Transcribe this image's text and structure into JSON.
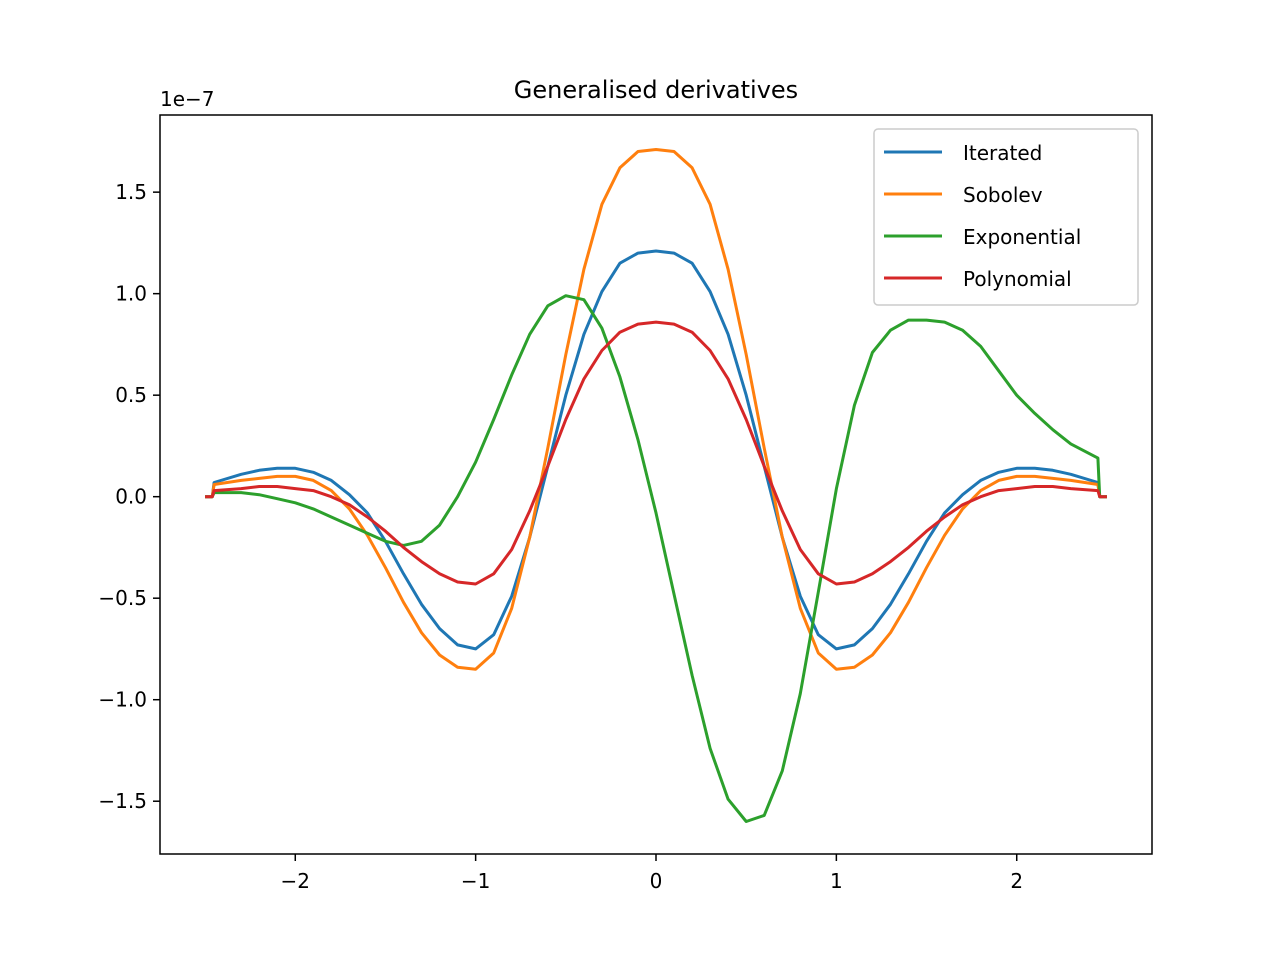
{
  "chart_data": {
    "type": "line",
    "title": "Generalised derivatives",
    "xlabel": "",
    "ylabel": "",
    "y_offset_label": "1e−7",
    "xlim": [
      -2.75,
      2.75
    ],
    "ylim": [
      -1.76,
      1.88
    ],
    "y_scale": 1e-07,
    "grid": false,
    "legend_position": "top-right",
    "xticks": [
      -2,
      -1,
      0,
      1,
      2
    ],
    "xtick_labels": [
      "−2",
      "−1",
      "0",
      "1",
      "2"
    ],
    "yticks": [
      -1.5,
      -1.0,
      -0.5,
      0.0,
      0.5,
      1.0,
      1.5
    ],
    "ytick_labels": [
      "−1.5",
      "−1.0",
      "−0.5",
      "0.0",
      "0.5",
      "1.0",
      "1.5"
    ],
    "x": [
      -2.45,
      -2.3,
      -2.2,
      -2.1,
      -2.0,
      -1.9,
      -1.8,
      -1.7,
      -1.6,
      -1.5,
      -1.4,
      -1.3,
      -1.2,
      -1.1,
      -1.0,
      -0.9,
      -0.8,
      -0.7,
      -0.6,
      -0.5,
      -0.4,
      -0.3,
      -0.2,
      -0.1,
      0.0,
      0.1,
      0.2,
      0.3,
      0.4,
      0.5,
      0.6,
      0.7,
      0.8,
      0.9,
      1.0,
      1.1,
      1.2,
      1.3,
      1.4,
      1.5,
      1.6,
      1.7,
      1.8,
      1.9,
      2.0,
      2.1,
      2.2,
      2.3,
      2.45
    ],
    "series": [
      {
        "name": "Iterated",
        "color": "#1f77b4",
        "values": [
          0.07,
          0.11,
          0.13,
          0.14,
          0.14,
          0.12,
          0.08,
          0.01,
          -0.08,
          -0.22,
          -0.38,
          -0.53,
          -0.65,
          -0.73,
          -0.75,
          -0.68,
          -0.49,
          -0.2,
          0.15,
          0.5,
          0.8,
          1.01,
          1.15,
          1.2,
          1.21,
          1.2,
          1.15,
          1.01,
          0.8,
          0.5,
          0.15,
          -0.2,
          -0.49,
          -0.68,
          -0.75,
          -0.73,
          -0.65,
          -0.53,
          -0.38,
          -0.22,
          -0.08,
          0.01,
          0.08,
          0.12,
          0.14,
          0.14,
          0.13,
          0.11,
          0.07
        ]
      },
      {
        "name": "Sobolev",
        "color": "#ff7f0e",
        "values": [
          0.06,
          0.08,
          0.09,
          0.1,
          0.1,
          0.08,
          0.03,
          -0.06,
          -0.19,
          -0.35,
          -0.52,
          -0.67,
          -0.78,
          -0.84,
          -0.85,
          -0.77,
          -0.55,
          -0.2,
          0.24,
          0.7,
          1.12,
          1.44,
          1.62,
          1.7,
          1.71,
          1.7,
          1.62,
          1.44,
          1.12,
          0.7,
          0.24,
          -0.2,
          -0.55,
          -0.77,
          -0.85,
          -0.84,
          -0.78,
          -0.67,
          -0.52,
          -0.35,
          -0.19,
          -0.06,
          0.03,
          0.08,
          0.1,
          0.1,
          0.09,
          0.08,
          0.06
        ]
      },
      {
        "name": "Exponential",
        "color": "#2ca02c",
        "values": [
          0.02,
          0.02,
          0.01,
          -0.01,
          -0.03,
          -0.06,
          -0.1,
          -0.14,
          -0.18,
          -0.22,
          -0.24,
          -0.22,
          -0.14,
          0.0,
          0.17,
          0.38,
          0.6,
          0.8,
          0.94,
          0.99,
          0.97,
          0.83,
          0.59,
          0.28,
          -0.08,
          -0.48,
          -0.88,
          -1.24,
          -1.49,
          -1.6,
          -1.57,
          -1.35,
          -0.97,
          -0.47,
          0.04,
          0.45,
          0.71,
          0.82,
          0.87,
          0.87,
          0.86,
          0.82,
          0.74,
          0.62,
          0.5,
          0.41,
          0.33,
          0.26,
          0.19
        ]
      },
      {
        "name": "Polynomial",
        "color": "#d62728",
        "values": [
          0.03,
          0.04,
          0.05,
          0.05,
          0.04,
          0.03,
          0.0,
          -0.04,
          -0.1,
          -0.17,
          -0.25,
          -0.32,
          -0.38,
          -0.42,
          -0.43,
          -0.38,
          -0.26,
          -0.07,
          0.15,
          0.38,
          0.58,
          0.72,
          0.81,
          0.85,
          0.86,
          0.85,
          0.81,
          0.72,
          0.58,
          0.38,
          0.15,
          -0.07,
          -0.26,
          -0.38,
          -0.43,
          -0.42,
          -0.38,
          -0.32,
          -0.25,
          -0.17,
          -0.1,
          -0.04,
          0.0,
          0.03,
          0.04,
          0.05,
          0.05,
          0.04,
          0.03
        ]
      }
    ]
  }
}
